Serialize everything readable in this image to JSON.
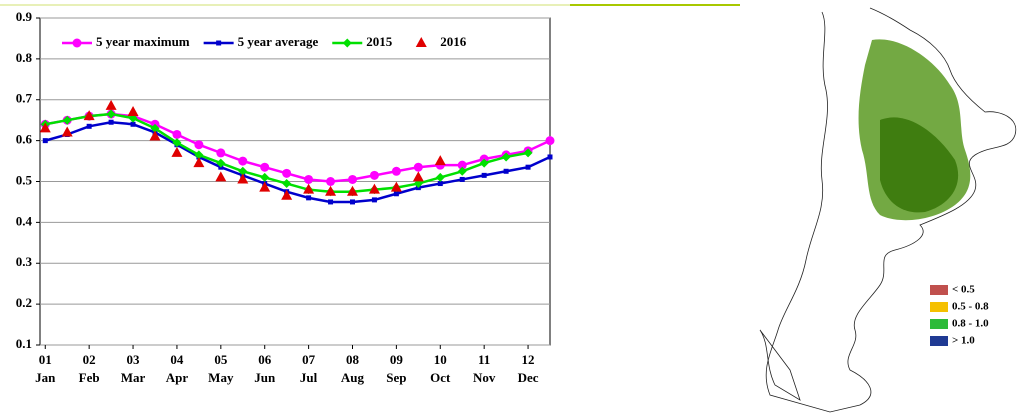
{
  "chart_data": {
    "type": "line",
    "x": [
      1,
      1.5,
      2,
      2.5,
      3,
      3.5,
      4,
      4.5,
      5,
      5.5,
      6,
      6.5,
      7,
      7.5,
      8,
      8.5,
      9,
      9.5,
      10,
      10.5,
      11,
      11.5,
      12,
      12.5
    ],
    "series": [
      {
        "name": "5 year maximum",
        "color": "#ff00ff",
        "marker": "circle",
        "line": true,
        "values": [
          0.64,
          0.65,
          0.66,
          0.665,
          0.66,
          0.64,
          0.615,
          0.59,
          0.57,
          0.55,
          0.535,
          0.52,
          0.505,
          0.5,
          0.505,
          0.515,
          0.525,
          0.535,
          0.54,
          0.54,
          0.555,
          0.565,
          0.575,
          0.6
        ]
      },
      {
        "name": "5 year average",
        "color": "#0000cc",
        "marker": "square",
        "line": true,
        "values": [
          0.6,
          0.615,
          0.635,
          0.645,
          0.64,
          0.62,
          0.59,
          0.56,
          0.535,
          0.515,
          0.495,
          0.475,
          0.46,
          0.45,
          0.45,
          0.455,
          0.47,
          0.485,
          0.495,
          0.505,
          0.515,
          0.525,
          0.535,
          0.56
        ]
      },
      {
        "name": "2015",
        "color": "#00e000",
        "marker": "diamond",
        "line": true,
        "values": [
          0.64,
          0.65,
          0.66,
          0.665,
          0.655,
          0.63,
          0.595,
          0.565,
          0.545,
          0.525,
          0.51,
          0.495,
          0.48,
          0.475,
          0.475,
          0.48,
          0.485,
          0.495,
          0.51,
          0.525,
          0.545,
          0.56,
          0.57,
          null
        ]
      },
      {
        "name": "2016",
        "color": "#e00000",
        "marker": "triangle",
        "line": false,
        "values": [
          0.63,
          0.62,
          0.66,
          0.685,
          0.67,
          0.61,
          0.57,
          0.545,
          0.51,
          0.505,
          0.485,
          0.465,
          0.48,
          0.475,
          0.475,
          0.48,
          0.485,
          0.51,
          0.55,
          null,
          null,
          null,
          null,
          null
        ]
      }
    ],
    "xlim": [
      0.88,
      12.5
    ],
    "xticks": [
      {
        "value": 1,
        "label": "01"
      },
      {
        "value": 2,
        "label": "02"
      },
      {
        "value": 3,
        "label": "03"
      },
      {
        "value": 4,
        "label": "04"
      },
      {
        "value": 5,
        "label": "05"
      },
      {
        "value": 6,
        "label": "06"
      },
      {
        "value": 7,
        "label": "07"
      },
      {
        "value": 8,
        "label": "08"
      },
      {
        "value": 9,
        "label": "09"
      },
      {
        "value": 10,
        "label": "10"
      },
      {
        "value": 11,
        "label": "11"
      },
      {
        "value": 12,
        "label": "12"
      }
    ],
    "xtick_sublabels": [
      "Jan",
      "Feb",
      "Mar",
      "Apr",
      "May",
      "Jun",
      "Jul",
      "Aug",
      "Sep",
      "Oct",
      "Nov",
      "Dec"
    ],
    "ylim": [
      0.1,
      0.9
    ],
    "yticks": [
      0.1,
      0.2,
      0.3,
      0.4,
      0.5,
      0.6,
      0.7,
      0.8,
      0.9
    ],
    "grid": true,
    "legend": "top"
  },
  "map": {
    "legend": [
      {
        "label": "< 0.5",
        "color": "#c0504d"
      },
      {
        "label": "0.5 - 0.8",
        "color": "#f5c000"
      },
      {
        "label": "0.8 - 1.0",
        "color": "#2dbb3a"
      },
      {
        "label": "> 1.0",
        "color": "#1f3a93"
      }
    ]
  }
}
